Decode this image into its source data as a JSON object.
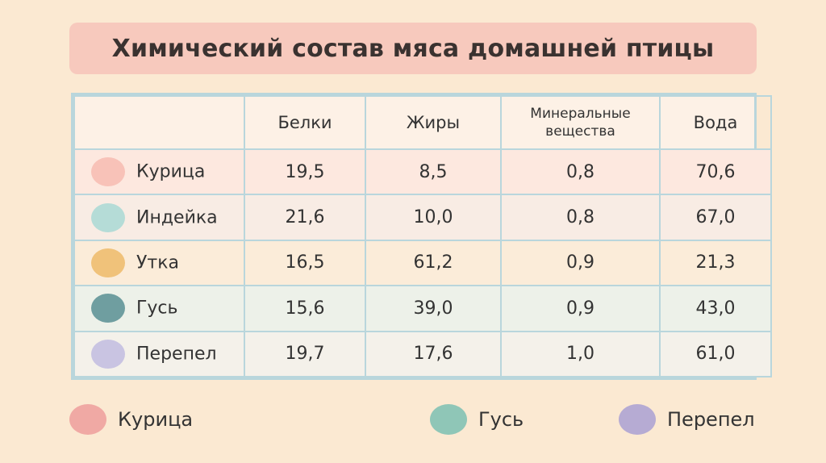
{
  "title": "Химический состав мяса домашней птицы",
  "table": {
    "headers": [
      "",
      "Белки",
      "Жиры",
      "Минеральные вещества",
      "Вода"
    ],
    "rows": [
      {
        "name": "Курица",
        "color": "#f8c2b8",
        "values": [
          "19,5",
          "8,5",
          "0,8",
          "70,6"
        ]
      },
      {
        "name": "Индейка",
        "color": "#b5dcd7",
        "values": [
          "21,6",
          "10,0",
          "0,8",
          "67,0"
        ]
      },
      {
        "name": "Утка",
        "color": "#f0c27a",
        "values": [
          "16,5",
          "61,2",
          "0,9",
          "21,3"
        ]
      },
      {
        "name": "Гусь",
        "color": "#6f9ea0",
        "values": [
          "15,6",
          "39,0",
          "0,9",
          "43,0"
        ]
      },
      {
        "name": "Перепел",
        "color": "#c9c4e2",
        "values": [
          "19,7",
          "17,6",
          "1,0",
          "61,0"
        ]
      }
    ]
  },
  "legend": [
    {
      "label": "Курица",
      "color": "#f0a9a4"
    },
    {
      "label": "Гусь",
      "color": "#8fc6b7"
    },
    {
      "label": "Перепел",
      "color": "#b6abd3"
    }
  ]
}
